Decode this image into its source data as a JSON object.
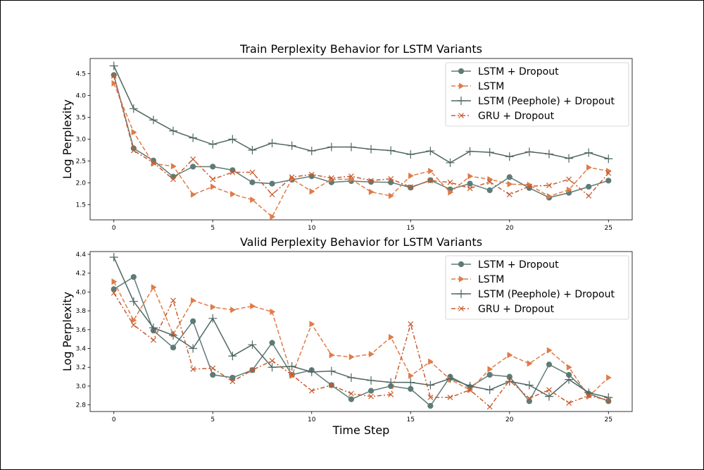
{
  "colors": {
    "lstm_dropout": "#5e7b77",
    "lstm": "#e07b48",
    "peephole": "#4e6661",
    "gru": "#c8592b"
  },
  "chart_data": [
    {
      "type": "line",
      "title": "Train Perplexity Behavior for LSTM Variants",
      "xlabel": "",
      "ylabel": "Log Perplexity",
      "xlim": [
        -1.2,
        26.2
      ],
      "ylim": [
        1.15,
        4.85
      ],
      "x_ticks": [
        0,
        5,
        10,
        15,
        20,
        25
      ],
      "y_ticks": [
        1.5,
        2.0,
        2.5,
        3.0,
        3.5,
        4.0,
        4.5
      ],
      "y_tick_labels": [
        "1.5",
        "2.0",
        "2.5",
        "3.0",
        "3.5",
        "4.0",
        "4.5"
      ],
      "legend": "top-right",
      "x": [
        0,
        1,
        2,
        3,
        4,
        5,
        6,
        7,
        8,
        9,
        10,
        11,
        12,
        13,
        14,
        15,
        16,
        17,
        18,
        19,
        20,
        21,
        22,
        23,
        24,
        25
      ],
      "series": [
        {
          "name": "LSTM + Dropout",
          "marker": "circle",
          "dash": "",
          "color_key": "lstm_dropout",
          "values": [
            4.47,
            2.79,
            2.51,
            2.14,
            2.37,
            2.37,
            2.29,
            2.01,
            1.98,
            2.07,
            2.15,
            2.01,
            2.04,
            2.02,
            2.01,
            1.89,
            2.06,
            1.85,
            1.98,
            1.83,
            2.13,
            1.88,
            1.66,
            1.77,
            1.91,
            2.05
          ]
        },
        {
          "name": "LSTM",
          "marker": "triangle",
          "dash": "6,3",
          "color_key": "lstm",
          "values": [
            4.28,
            3.16,
            2.44,
            2.38,
            1.73,
            1.91,
            1.74,
            1.61,
            1.22,
            2.09,
            1.8,
            2.08,
            2.08,
            1.79,
            1.7,
            2.16,
            2.27,
            1.78,
            2.15,
            2.08,
            1.97,
            1.95,
            1.69,
            1.84,
            2.35,
            2.27
          ]
        },
        {
          "name": "LSTM (Peephole) + Dropout",
          "marker": "plus",
          "dash": "",
          "color_key": "peephole",
          "values": [
            4.68,
            3.7,
            3.44,
            3.19,
            3.03,
            2.88,
            3.0,
            2.75,
            2.91,
            2.85,
            2.73,
            2.82,
            2.82,
            2.77,
            2.74,
            2.65,
            2.73,
            2.46,
            2.72,
            2.7,
            2.6,
            2.71,
            2.66,
            2.56,
            2.69,
            2.55
          ]
        },
        {
          "name": "GRU + Dropout",
          "marker": "x",
          "dash": "6,3,2,3",
          "color_key": "gru",
          "values": [
            4.45,
            2.74,
            2.46,
            2.08,
            2.54,
            2.08,
            2.24,
            2.24,
            1.73,
            2.13,
            2.19,
            2.11,
            2.15,
            2.05,
            2.09,
            1.9,
            2.05,
            2.01,
            1.87,
            2.02,
            1.73,
            1.92,
            1.94,
            2.08,
            1.7,
            2.22
          ]
        }
      ]
    },
    {
      "type": "line",
      "title": "Valid Perplexity Behavior for LSTM Variants",
      "xlabel": "Time Step",
      "ylabel": "Log Perplexity",
      "xlim": [
        -1.2,
        26.2
      ],
      "ylim": [
        2.73,
        4.43
      ],
      "x_ticks": [
        0,
        5,
        10,
        15,
        20,
        25
      ],
      "y_ticks": [
        2.8,
        3.0,
        3.2,
        3.4,
        3.6,
        3.8,
        4.0,
        4.2,
        4.4
      ],
      "y_tick_labels": [
        "2.8",
        "3.0",
        "3.2",
        "3.4",
        "3.6",
        "3.8",
        "4.0",
        "4.2",
        "4.4"
      ],
      "legend": "top-right",
      "x": [
        0,
        1,
        2,
        3,
        4,
        5,
        6,
        7,
        8,
        9,
        10,
        11,
        12,
        13,
        14,
        15,
        16,
        17,
        18,
        19,
        20,
        21,
        22,
        23,
        24,
        25
      ],
      "series": [
        {
          "name": "LSTM + Dropout",
          "marker": "circle",
          "dash": "",
          "color_key": "lstm_dropout",
          "values": [
            4.03,
            4.16,
            3.59,
            3.41,
            3.69,
            3.12,
            3.09,
            3.17,
            3.46,
            3.12,
            3.17,
            3.01,
            2.86,
            2.95,
            3.0,
            2.97,
            2.79,
            3.1,
            2.99,
            3.12,
            3.1,
            2.84,
            3.23,
            3.12,
            2.92,
            2.84
          ]
        },
        {
          "name": "LSTM",
          "marker": "triangle",
          "dash": "6,3",
          "color_key": "lstm",
          "values": [
            4.11,
            3.7,
            4.05,
            3.55,
            3.91,
            3.84,
            3.81,
            3.85,
            3.79,
            3.11,
            3.66,
            3.33,
            3.31,
            3.34,
            3.52,
            3.11,
            3.26,
            3.07,
            2.96,
            3.18,
            3.33,
            3.24,
            3.38,
            3.2,
            2.89,
            3.09
          ]
        },
        {
          "name": "LSTM (Peephole) + Dropout",
          "marker": "plus",
          "dash": "",
          "color_key": "peephole",
          "values": [
            4.37,
            3.9,
            3.62,
            3.54,
            3.4,
            3.72,
            3.32,
            3.44,
            3.2,
            3.21,
            3.15,
            3.16,
            3.09,
            3.06,
            3.04,
            3.04,
            3.01,
            3.08,
            3.0,
            2.96,
            3.05,
            3.01,
            2.89,
            3.07,
            2.93,
            2.88
          ]
        },
        {
          "name": "GRU + Dropout",
          "marker": "x",
          "dash": "6,3,2,3",
          "color_key": "gru",
          "values": [
            3.99,
            3.65,
            3.49,
            3.91,
            3.18,
            3.19,
            3.05,
            3.17,
            3.27,
            3.12,
            2.95,
            3.01,
            2.92,
            2.89,
            2.91,
            3.66,
            2.88,
            2.88,
            2.96,
            2.78,
            3.06,
            2.87,
            2.96,
            2.82,
            2.9,
            2.85
          ]
        }
      ]
    }
  ]
}
